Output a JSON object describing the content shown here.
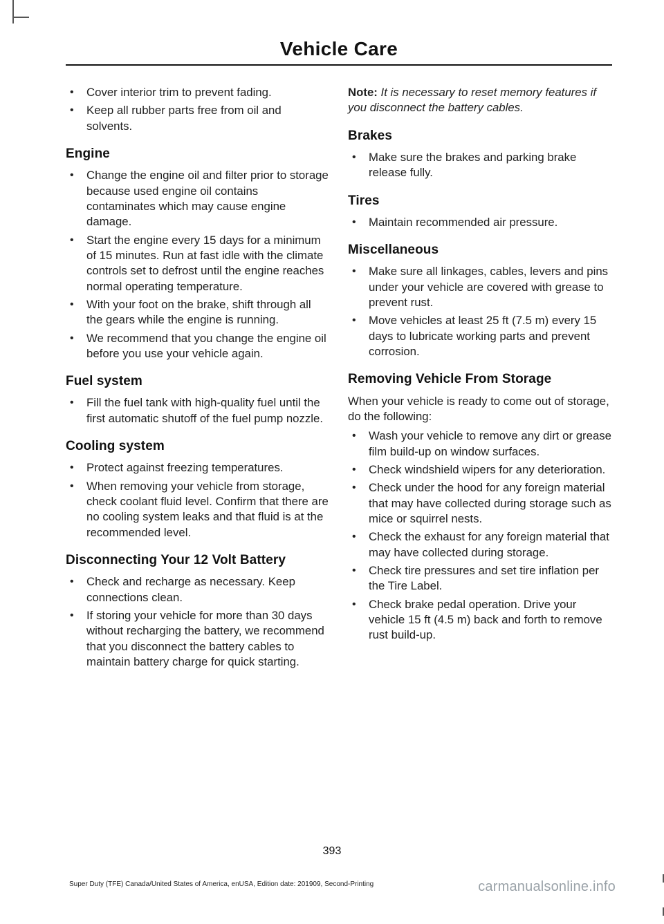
{
  "title": "Vehicle Care",
  "page_number": "393",
  "footer_left": "Super Duty (TFE) Canada/United States of America, enUSA, Edition date: 201909, Second-Printing",
  "footer_right": "carmanualsonline.info",
  "left": {
    "top_bullets": [
      "Cover interior trim to prevent fading.",
      "Keep all rubber parts free from oil and solvents."
    ],
    "engine": {
      "heading": "Engine",
      "items": [
        "Change the engine oil and filter prior to storage because used engine oil contains contaminates which may cause engine damage.",
        "Start the engine every 15 days for a minimum of 15 minutes.  Run at fast idle with the climate controls set to defrost until the engine reaches normal operating temperature.",
        "With your foot on the brake, shift through all the gears while the engine is running.",
        "We recommend that you change the engine oil before you use your vehicle again."
      ]
    },
    "fuel": {
      "heading": "Fuel system",
      "items": [
        "Fill the fuel tank with high-quality fuel until the first automatic shutoff of the fuel pump nozzle."
      ]
    },
    "cooling": {
      "heading": "Cooling system",
      "items": [
        "Protect against freezing temperatures.",
        "When removing your vehicle from storage, check coolant fluid level. Confirm that there are no cooling system leaks and that fluid is at the recommended level."
      ]
    },
    "battery": {
      "heading": "Disconnecting Your 12 Volt Battery",
      "items": [
        "Check and recharge as necessary. Keep connections clean.",
        "If storing your vehicle for more than 30 days without recharging the battery, we recommend that you disconnect the battery cables to maintain battery charge for quick starting."
      ]
    }
  },
  "right": {
    "note_label": "Note:",
    "note_body": " It is necessary to reset memory features if you disconnect the battery cables.",
    "brakes": {
      "heading": "Brakes",
      "items": [
        "Make sure the brakes and parking brake release fully."
      ]
    },
    "tires": {
      "heading": "Tires",
      "items": [
        "Maintain recommended air pressure."
      ]
    },
    "misc": {
      "heading": "Miscellaneous",
      "items": [
        "Make sure all linkages, cables, levers and pins under your vehicle are covered with grease to prevent rust.",
        "Move vehicles at least 25 ft (7.5 m) every 15 days to lubricate working parts and prevent corrosion."
      ]
    },
    "removing": {
      "heading": "Removing Vehicle From Storage",
      "intro": "When your vehicle is ready to come out of storage, do the following:",
      "items": [
        "Wash your vehicle to remove any dirt or grease film build-up on window surfaces.",
        "Check windshield wipers for any deterioration.",
        "Check under the hood for any foreign material that may have collected during storage such as mice or squirrel nests.",
        "Check the exhaust for any foreign material that may have collected during storage.",
        "Check tire pressures and set tire inflation per the Tire Label.",
        "Check brake pedal operation. Drive your vehicle 15 ft (4.5 m) back and forth to remove rust build-up."
      ]
    }
  }
}
